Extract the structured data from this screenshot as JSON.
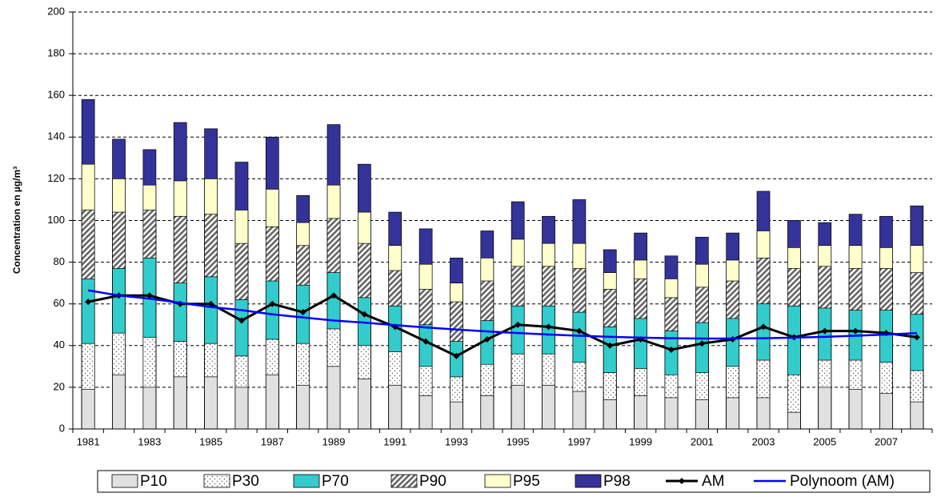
{
  "chart_data": {
    "type": "bar",
    "y_label": "Concentration en µg/m³",
    "categories": [
      "1981",
      null,
      "1983",
      null,
      "1985",
      null,
      "1987",
      null,
      "1989",
      null,
      "1991",
      null,
      "1993",
      null,
      "1995",
      null,
      "1997",
      null,
      "1999",
      null,
      "2001",
      null,
      "2003",
      null,
      "2005",
      null,
      "2007",
      null
    ],
    "ylim": [
      0,
      200
    ],
    "yticks": [
      0,
      20,
      40,
      60,
      80,
      100,
      120,
      140,
      160,
      180,
      200
    ],
    "grid": true,
    "series": [
      {
        "name": "P10",
        "type": "bar",
        "color": "#e0e0e0",
        "pattern": "solid",
        "values": [
          19,
          26,
          20,
          25,
          25,
          20,
          26,
          21,
          30,
          24,
          21,
          16,
          13,
          16,
          21,
          21,
          18,
          14,
          16,
          15,
          14,
          15,
          15,
          8,
          20,
          19,
          17,
          13
        ]
      },
      {
        "name": "P30",
        "type": "bar",
        "color": "#ffffff",
        "pattern": "dots",
        "values": [
          41,
          46,
          44,
          42,
          41,
          35,
          43,
          41,
          48,
          40,
          37,
          30,
          25,
          31,
          36,
          36,
          32,
          27,
          29,
          26,
          27,
          30,
          33,
          26,
          33,
          33,
          32,
          28
        ]
      },
      {
        "name": "P70",
        "type": "bar",
        "color": "#33cccc",
        "pattern": "solid",
        "values": [
          72,
          77,
          82,
          70,
          73,
          62,
          71,
          69,
          75,
          63,
          59,
          50,
          42,
          52,
          59,
          59,
          56,
          49,
          53,
          47,
          51,
          53,
          60,
          59,
          58,
          57,
          57,
          55
        ]
      },
      {
        "name": "P90",
        "type": "bar",
        "color": "#999999",
        "pattern": "hatch",
        "values": [
          105,
          104,
          105,
          102,
          103,
          89,
          97,
          88,
          101,
          89,
          76,
          67,
          61,
          71,
          78,
          78,
          77,
          67,
          72,
          63,
          68,
          71,
          82,
          77,
          78,
          77,
          77,
          75
        ]
      },
      {
        "name": "P95",
        "type": "bar",
        "color": "#ffffcc",
        "pattern": "solid",
        "values": [
          127,
          120,
          117,
          119,
          120,
          105,
          115,
          99,
          117,
          104,
          88,
          79,
          70,
          82,
          91,
          89,
          89,
          75,
          81,
          72,
          79,
          81,
          95,
          87,
          88,
          88,
          87,
          88
        ]
      },
      {
        "name": "P98",
        "type": "bar",
        "color": "#333399",
        "pattern": "solid",
        "values": [
          158,
          139,
          134,
          147,
          144,
          128,
          140,
          112,
          146,
          127,
          104,
          96,
          82,
          95,
          109,
          102,
          110,
          86,
          94,
          83,
          92,
          94,
          114,
          100,
          99,
          103,
          102,
          107
        ]
      },
      {
        "name": "AM",
        "type": "line",
        "color": "#000000",
        "marker": "diamond",
        "values": [
          61,
          64,
          64,
          60,
          60,
          52,
          60,
          56,
          64,
          55,
          49,
          42,
          35,
          43,
          50,
          49,
          47,
          40,
          43,
          38,
          41,
          43,
          49,
          44,
          47,
          47,
          46,
          44
        ]
      },
      {
        "name": "Polynoom (AM)",
        "type": "line",
        "color": "#0000ff",
        "marker": "none",
        "values": [
          66.5,
          64,
          62.5,
          60.5,
          58.5,
          57,
          55,
          53.5,
          52,
          51,
          49.8,
          48.7,
          47.7,
          46.8,
          46,
          45.3,
          44.7,
          44.2,
          43.8,
          43.5,
          43.4,
          43.4,
          43.5,
          43.8,
          44.2,
          44.7,
          45.3,
          46
        ]
      }
    ]
  }
}
